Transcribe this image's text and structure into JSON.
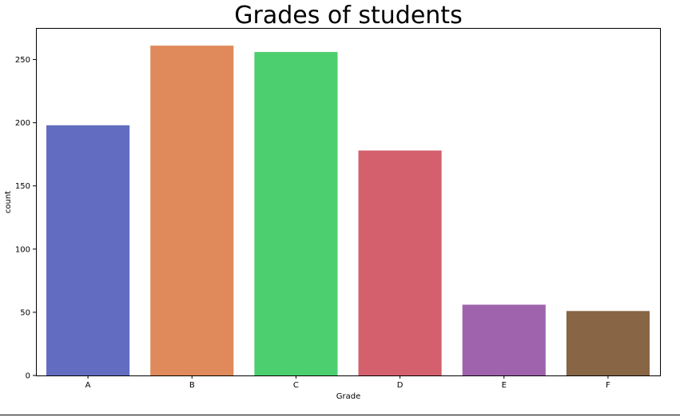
{
  "chart_data": {
    "type": "bar",
    "title": "Grades of students",
    "xlabel": "Grade",
    "ylabel": "count",
    "categories": [
      "A",
      "B",
      "C",
      "D",
      "E",
      "F"
    ],
    "values": [
      198,
      261,
      256,
      178,
      56,
      51
    ],
    "colors": [
      "#626dc2",
      "#e0895a",
      "#4cd06f",
      "#d3606c",
      "#9f63ad",
      "#876545"
    ],
    "ylim": [
      0,
      275
    ],
    "yticks": [
      0,
      50,
      100,
      150,
      200,
      250
    ],
    "grid": false
  }
}
